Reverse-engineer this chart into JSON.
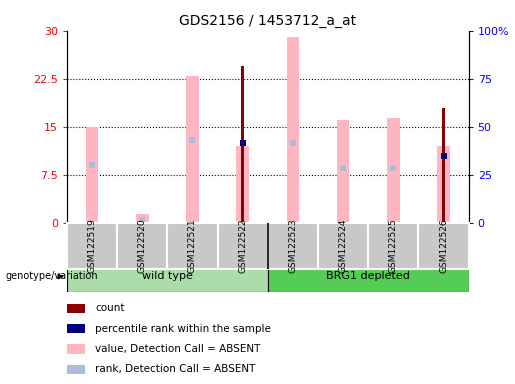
{
  "title": "GDS2156 / 1453712_a_at",
  "samples": [
    "GSM122519",
    "GSM122520",
    "GSM122521",
    "GSM122522",
    "GSM122523",
    "GSM122524",
    "GSM122525",
    "GSM122526"
  ],
  "left_ylim": [
    0,
    30
  ],
  "right_ylim": [
    0,
    100
  ],
  "left_yticks": [
    0,
    7.5,
    15,
    22.5,
    30
  ],
  "right_yticks": [
    0,
    25,
    50,
    75,
    100
  ],
  "right_yticklabels": [
    "0",
    "25",
    "50",
    "75",
    "100%"
  ],
  "dotted_gridlines": [
    7.5,
    15,
    22.5
  ],
  "pink_bars": [
    15.0,
    1.3,
    23.0,
    12.0,
    29.0,
    16.0,
    16.3,
    12.0
  ],
  "red_bars": [
    0,
    0,
    0,
    24.5,
    0,
    0,
    0,
    18.0
  ],
  "blue_markers_y": [
    9.0,
    0,
    13.0,
    12.5,
    12.5,
    0,
    0,
    10.5
  ],
  "lightblue_markers_y": [
    9.0,
    0.5,
    13.0,
    12.5,
    12.5,
    8.5,
    8.5,
    10.5
  ],
  "has_dark_blue": [
    false,
    false,
    false,
    true,
    false,
    false,
    false,
    true
  ],
  "has_light_blue": [
    true,
    true,
    true,
    true,
    true,
    true,
    true,
    true
  ],
  "pink_bar_color": "#FFB6C1",
  "red_bar_color": "#8B0000",
  "blue_marker_color": "#000080",
  "lightblue_marker_color": "#AABBDD",
  "group1_color": "#AADDAA",
  "group2_color": "#44CC44",
  "legend_items": [
    {
      "color": "#8B0000",
      "label": "count"
    },
    {
      "color": "#000080",
      "label": "percentile rank within the sample"
    },
    {
      "color": "#FFB6C1",
      "label": "value, Detection Call = ABSENT"
    },
    {
      "color": "#AABBDD",
      "label": "rank, Detection Call = ABSENT"
    }
  ]
}
